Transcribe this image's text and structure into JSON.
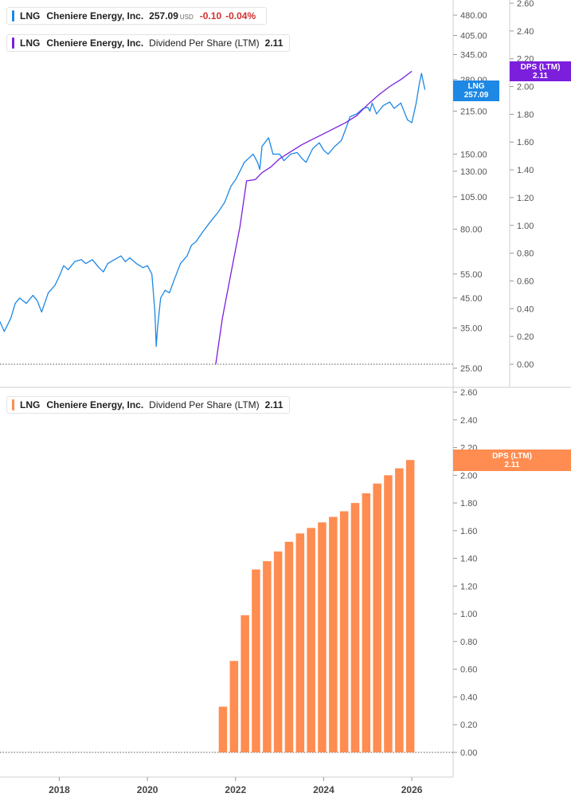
{
  "legend_price": {
    "ticker": "LNG",
    "company": "Cheniere Energy, Inc.",
    "price": "257.09",
    "currency": "USD",
    "change": "-0.10",
    "change_pct": "-0.04%",
    "color": "#1e88e5"
  },
  "legend_dps_top": {
    "ticker": "LNG",
    "company": "Cheniere Energy, Inc.",
    "metric": "Dividend Per Share (LTM)",
    "value": "2.11",
    "color": "#7b1fdd"
  },
  "legend_dps_bottom": {
    "ticker": "LNG",
    "company": "Cheniere Energy, Inc.",
    "metric": "Dividend Per Share (LTM)",
    "value": "2.11",
    "color": "#ff8c50"
  },
  "tags": {
    "price_tag": {
      "line1": "LNG",
      "line2": "257.09",
      "color": "#1e88e5"
    },
    "dps_tag_top": {
      "line1": "DPS (LTM)",
      "line2": "2.11",
      "color": "#7b1fdd"
    },
    "dps_tag_bottom": {
      "line1": "DPS (LTM)",
      "line2": "2.11",
      "color": "#ff8c50"
    }
  },
  "chart_data": [
    {
      "type": "line",
      "panel": "top",
      "scale": "log",
      "ylim": [
        25,
        480
      ],
      "y_ticks": [
        480,
        405,
        345,
        280,
        215,
        150,
        130,
        105,
        80,
        55,
        45,
        35,
        25
      ],
      "y_tick_labels": [
        "480.00",
        "405.00",
        "345.00",
        "280.00",
        "215.00",
        "150.00",
        "130.00",
        "105.00",
        "80.00",
        "55.00",
        "45.00",
        "35.00",
        "25.00"
      ],
      "series": [
        {
          "name": "LNG",
          "color": "#1e88e5",
          "x": [
            2016.65,
            2016.75,
            2016.9,
            2017.0,
            2017.1,
            2017.25,
            2017.4,
            2017.5,
            2017.6,
            2017.75,
            2017.9,
            2018.0,
            2018.1,
            2018.2,
            2018.35,
            2018.5,
            2018.6,
            2018.75,
            2018.9,
            2019.0,
            2019.1,
            2019.25,
            2019.4,
            2019.5,
            2019.6,
            2019.75,
            2019.9,
            2020.0,
            2020.1,
            2020.17,
            2020.2,
            2020.23,
            2020.26,
            2020.3,
            2020.4,
            2020.5,
            2020.6,
            2020.75,
            2020.9,
            2021.0,
            2021.1,
            2021.25,
            2021.4,
            2021.5,
            2021.6,
            2021.75,
            2021.9,
            2022.0,
            2022.1,
            2022.2,
            2022.3,
            2022.4,
            2022.5,
            2022.55,
            2022.6,
            2022.75,
            2022.85,
            2023.0,
            2023.1,
            2023.25,
            2023.4,
            2023.5,
            2023.6,
            2023.75,
            2023.9,
            2024.0,
            2024.1,
            2024.25,
            2024.4,
            2024.5,
            2024.6,
            2024.75,
            2024.9,
            2025.0,
            2025.05,
            2025.1,
            2025.2,
            2025.35,
            2025.5,
            2025.6,
            2025.75,
            2025.9,
            2026.0,
            2026.1,
            2026.17,
            2026.22,
            2026.27,
            2026.3
          ],
          "y": [
            37,
            34,
            38,
            43,
            45,
            43,
            46,
            44,
            40,
            47,
            50,
            54,
            59,
            57,
            61,
            62,
            60,
            62,
            58,
            56,
            60,
            62,
            64,
            61,
            63,
            60,
            58,
            59,
            55,
            40,
            30,
            35,
            39,
            45,
            48,
            47,
            52,
            60,
            64,
            70,
            72,
            78,
            84,
            88,
            92,
            100,
            115,
            121,
            130,
            140,
            145,
            150,
            140,
            132,
            160,
            172,
            150,
            150,
            142,
            150,
            152,
            145,
            140,
            157,
            165,
            155,
            150,
            160,
            168,
            185,
            205,
            210,
            220,
            222,
            215,
            230,
            210,
            225,
            232,
            220,
            230,
            200,
            195,
            230,
            270,
            295,
            270,
            257.09
          ]
        },
        {
          "name": "DPS (LTM)",
          "color": "#7b1fdd",
          "x": [
            2021.55,
            2021.7,
            2021.9,
            2022.1,
            2022.25,
            2022.45,
            2022.6,
            2022.8,
            2023.0,
            2023.25,
            2023.5,
            2023.75,
            2024.0,
            2024.25,
            2024.5,
            2024.75,
            2025.0,
            2025.25,
            2025.5,
            2025.75,
            2026.0
          ],
          "y": [
            0.0,
            0.33,
            0.66,
            0.99,
            1.32,
            1.33,
            1.38,
            1.42,
            1.48,
            1.53,
            1.58,
            1.62,
            1.66,
            1.7,
            1.74,
            1.79,
            1.87,
            1.94,
            2.0,
            2.05,
            2.11
          ]
        }
      ],
      "secondary_axis": {
        "ylim": [
          0,
          2.6
        ],
        "ticks": [
          0.0,
          0.2,
          0.4,
          0.6,
          0.8,
          1.0,
          1.2,
          1.4,
          1.6,
          1.8,
          2.0,
          2.2,
          2.4,
          2.6
        ],
        "tick_labels": [
          "0.00",
          "0.20",
          "0.40",
          "0.60",
          "0.80",
          "1.00",
          "1.20",
          "1.40",
          "1.60",
          "1.80",
          "2.00",
          "2.20",
          "2.40",
          "2.60"
        ]
      }
    },
    {
      "type": "bar",
      "panel": "bottom",
      "ylim": [
        0,
        2.6
      ],
      "y_ticks": [
        0.0,
        0.2,
        0.4,
        0.6,
        0.8,
        1.0,
        1.2,
        1.4,
        1.6,
        1.8,
        2.0,
        2.2,
        2.4,
        2.6
      ],
      "y_tick_labels": [
        "0.00",
        "0.20",
        "0.40",
        "0.60",
        "0.80",
        "1.00",
        "1.20",
        "1.40",
        "1.60",
        "1.80",
        "2.00",
        "2.20",
        "2.40",
        "2.60"
      ],
      "x_ticks": [
        2018,
        2020,
        2022,
        2024,
        2026
      ],
      "x_tick_labels": [
        "2018",
        "2020",
        "2022",
        "2024",
        "2026"
      ],
      "xlim": [
        2016.6,
        2026.6
      ],
      "series": [
        {
          "name": "Dividend Per Share (LTM)",
          "color": "#ff8c50",
          "x": [
            2021.71,
            2021.96,
            2022.21,
            2022.46,
            2022.71,
            2022.96,
            2023.21,
            2023.46,
            2023.71,
            2023.96,
            2024.21,
            2024.46,
            2024.71,
            2024.96,
            2025.21,
            2025.46,
            2025.71,
            2025.96
          ],
          "values": [
            0.33,
            0.66,
            0.99,
            1.32,
            1.38,
            1.45,
            1.52,
            1.58,
            1.62,
            1.66,
            1.7,
            1.74,
            1.8,
            1.87,
            1.94,
            2.0,
            2.05,
            2.11
          ]
        }
      ]
    }
  ]
}
